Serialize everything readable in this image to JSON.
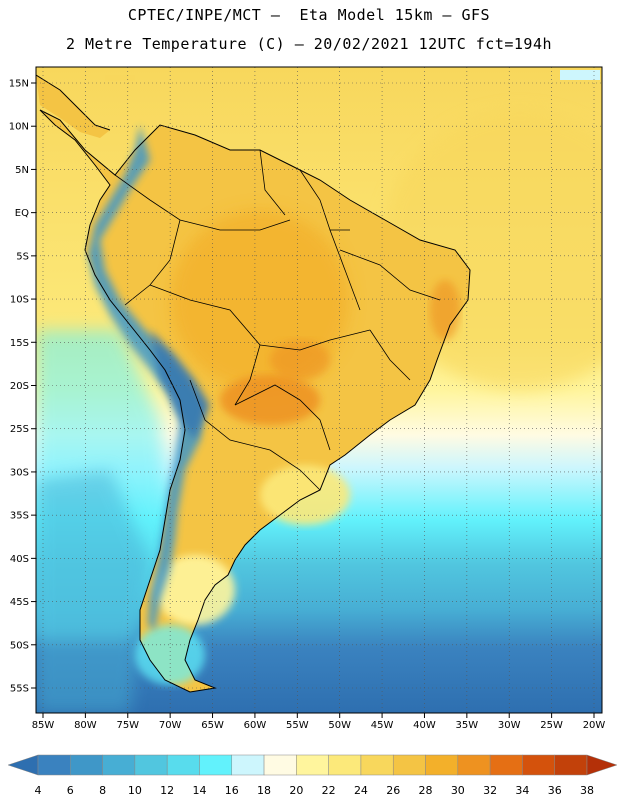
{
  "header": {
    "line1": "CPTEC/INPE/MCT –  Eta Model 15km – GFS",
    "line2": "2 Metre Temperature (C) – 20/02/2021 12UTC fct=194h"
  },
  "map": {
    "lon_range": [
      -85,
      -20
    ],
    "lat_range": [
      -58,
      17
    ],
    "lon_ticks": [
      "85W",
      "80W",
      "75W",
      "70W",
      "65W",
      "60W",
      "55W",
      "50W",
      "45W",
      "40W",
      "35W",
      "30W",
      "25W",
      "20W"
    ],
    "lat_ticks": [
      "15N",
      "10N",
      "5N",
      "EQ",
      "5S",
      "10S",
      "15S",
      "20S",
      "25S",
      "30S",
      "35S",
      "40S",
      "45S",
      "50S",
      "55S"
    ],
    "grid": true
  },
  "colorbar": {
    "levels": [
      "4",
      "6",
      "8",
      "10",
      "12",
      "14",
      "16",
      "18",
      "20",
      "22",
      "24",
      "26",
      "28",
      "30",
      "32",
      "34",
      "36",
      "38"
    ],
    "colors": [
      "#2e6fb0",
      "#3a82bf",
      "#3f97c8",
      "#47aed4",
      "#51c6df",
      "#58dced",
      "#62f2fc",
      "#cdf6fd",
      "#fffbe3",
      "#fff59d",
      "#fce97a",
      "#f8d75c",
      "#f4c444",
      "#f3b02a",
      "#ee9220",
      "#e56f14",
      "#d4520c",
      "#c2410a",
      "#b43008"
    ]
  }
}
